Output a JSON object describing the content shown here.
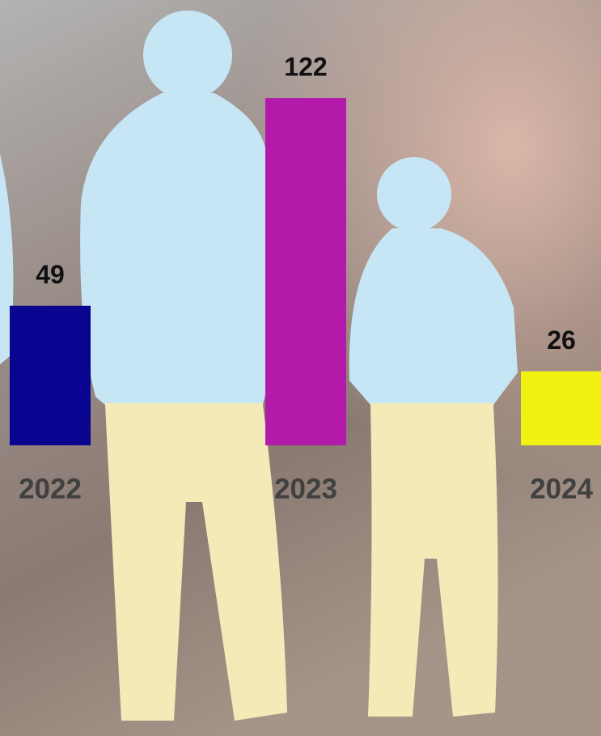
{
  "chart_data": {
    "type": "bar",
    "categories": [
      "2022",
      "2023",
      "2024"
    ],
    "values": [
      49,
      122,
      26
    ],
    "colors": [
      "#0a0590",
      "#b31aaa",
      "#f2f212"
    ]
  }
}
